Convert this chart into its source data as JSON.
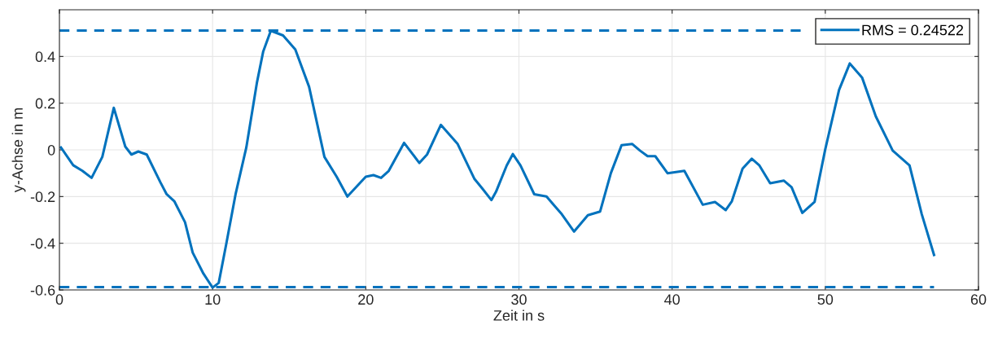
{
  "chart_data": {
    "type": "line",
    "xlabel": "Zeit in s",
    "ylabel": "y-Achse in m",
    "xlim": [
      0,
      60
    ],
    "xticks": [
      0,
      10,
      20,
      30,
      40,
      50,
      60
    ],
    "ylim": [
      -0.6,
      0.6
    ],
    "yticks": [
      -0.6,
      -0.4,
      -0.2,
      0,
      0.2,
      0.4
    ],
    "grid": true,
    "legend": "top right",
    "series": [
      {
        "name": "RMS = 0.24522",
        "color": "#0072bd",
        "line_style": "solid",
        "x": [
          0.1,
          0.9,
          1.5,
          2.1,
          2.8,
          3.55,
          4.3,
          4.7,
          5.15,
          5.7,
          6.6,
          7.0,
          7.5,
          8.2,
          8.7,
          9.4,
          10.0,
          10.4,
          10.9,
          11.5,
          12.2,
          12.9,
          13.3,
          13.8,
          14.6,
          15.4,
          16.3,
          17.3,
          18.1,
          18.8,
          20.0,
          20.5,
          21.0,
          21.5,
          22.5,
          23.5,
          24.0,
          24.9,
          26.0,
          27.1,
          27.6,
          28.2,
          28.5,
          29.2,
          29.6,
          30.1,
          31.0,
          31.8,
          32.8,
          33.6,
          34.5,
          35.3,
          36.0,
          36.7,
          37.4,
          37.9,
          38.4,
          38.9,
          39.7,
          40.8,
          42.0,
          42.8,
          43.5,
          43.9,
          44.6,
          45.2,
          45.7,
          46.4,
          47.3,
          47.8,
          48.5,
          49.3,
          50.0,
          50.9,
          51.6,
          52.4,
          53.3,
          54.4,
          55.5,
          56.3,
          57.1
        ],
        "values": [
          0.01,
          -0.066,
          -0.09,
          -0.12,
          -0.03,
          0.18,
          0.014,
          -0.02,
          -0.007,
          -0.02,
          -0.14,
          -0.19,
          -0.22,
          -0.31,
          -0.44,
          -0.53,
          -0.59,
          -0.57,
          -0.4,
          -0.19,
          0.01,
          0.29,
          0.42,
          0.51,
          0.49,
          0.43,
          0.27,
          -0.03,
          -0.115,
          -0.2,
          -0.115,
          -0.108,
          -0.12,
          -0.09,
          0.03,
          -0.056,
          -0.02,
          0.107,
          0.025,
          -0.125,
          -0.165,
          -0.215,
          -0.18,
          -0.067,
          -0.018,
          -0.067,
          -0.19,
          -0.2,
          -0.276,
          -0.35,
          -0.28,
          -0.264,
          -0.1,
          0.02,
          0.025,
          -0.003,
          -0.027,
          -0.027,
          -0.1,
          -0.09,
          -0.235,
          -0.223,
          -0.258,
          -0.22,
          -0.08,
          -0.038,
          -0.067,
          -0.143,
          -0.132,
          -0.16,
          -0.27,
          -0.223,
          0.003,
          0.257,
          0.37,
          0.31,
          0.143,
          -0.003,
          -0.067,
          -0.276,
          -0.45
        ]
      },
      {
        "color": "#0072bd",
        "line_style": "dashed",
        "x": [
          0,
          48.5
        ],
        "values": [
          0.511,
          0.511
        ]
      },
      {
        "color": "#0072bd",
        "line_style": "dashed",
        "x": [
          0,
          57.1
        ],
        "values": [
          -0.588,
          -0.588
        ]
      }
    ]
  }
}
